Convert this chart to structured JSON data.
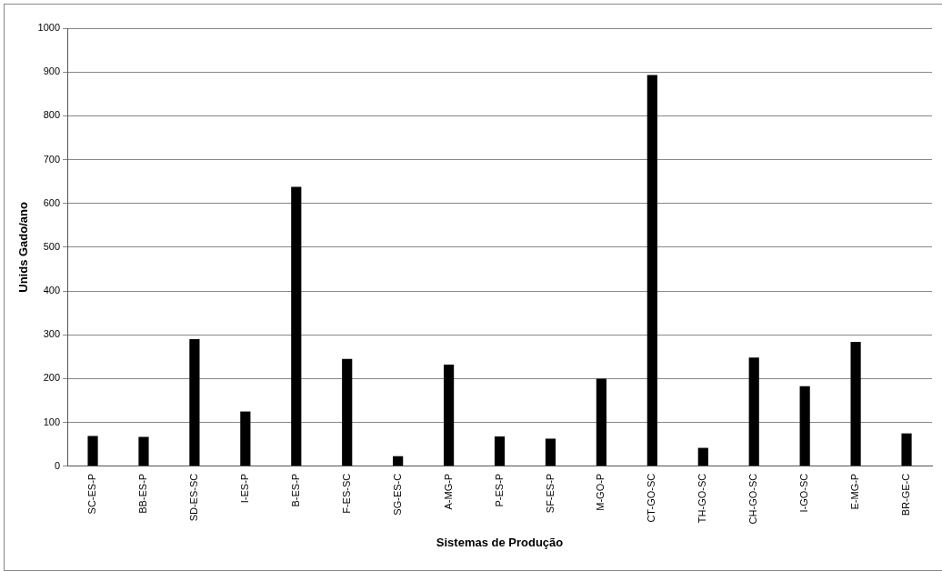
{
  "chart_data": {
    "type": "bar",
    "xlabel": "Sistemas de Produção",
    "ylabel": "Unids Gado/ano",
    "categories": [
      "SC-ES-P",
      "BB-ES-P",
      "SD-ES-SC",
      "I-ES-P",
      "B-ES-P",
      "F-ES-SC",
      "SG-ES-C",
      "A-MG-P",
      "P-ES-P",
      "SF-ES-P",
      "M-GO-P",
      "CT-GO-SC",
      "TH-GO-SC",
      "CH-GO-SC",
      "I-GO-SC",
      "E-MG-P",
      "BR-GE-C"
    ],
    "values": [
      69,
      67,
      290,
      125,
      638,
      245,
      23,
      232,
      68,
      63,
      200,
      893,
      42,
      248,
      183,
      284,
      75
    ],
    "color": "#000000",
    "ylim": [
      0,
      1000
    ],
    "yticks": [
      0,
      100,
      200,
      300,
      400,
      500,
      600,
      700,
      800,
      900,
      1000
    ],
    "grid": "y",
    "legend": false
  }
}
